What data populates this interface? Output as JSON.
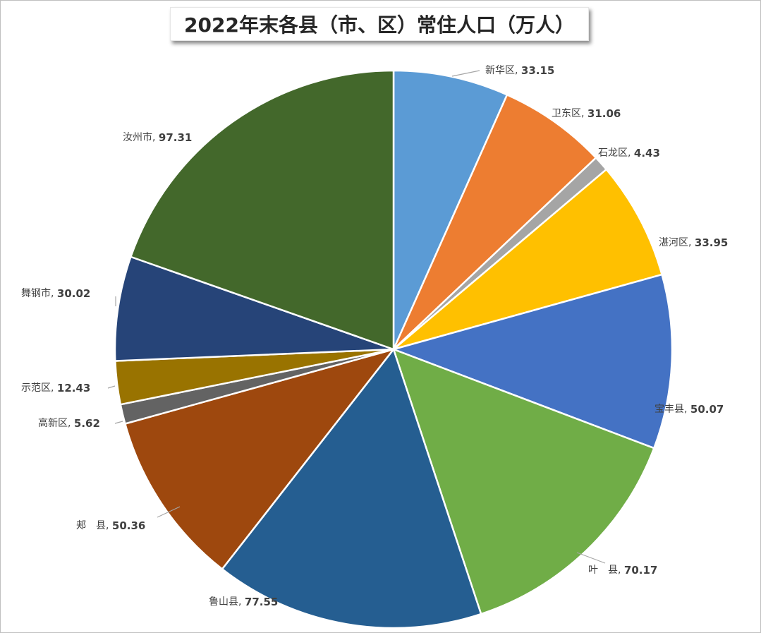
{
  "chart_data": {
    "type": "pie",
    "title": "2022年末各县（市、区）常住人口（万人）",
    "slices": [
      {
        "name": "新华区",
        "value": 33.15,
        "color": "#5b9bd5"
      },
      {
        "name": "卫东区",
        "value": 31.06,
        "color": "#ed7d31"
      },
      {
        "name": "石龙区",
        "value": 4.43,
        "color": "#a5a5a5"
      },
      {
        "name": "湛河区",
        "value": 33.95,
        "color": "#ffc000"
      },
      {
        "name": "宝丰县",
        "value": 50.07,
        "color": "#4472c4"
      },
      {
        "name": "叶　县",
        "value": 70.17,
        "color": "#70ad47"
      },
      {
        "name": "鲁山县",
        "value": 77.55,
        "color": "#255e91"
      },
      {
        "name": "郏　县",
        "value": 50.36,
        "color": "#9e480e"
      },
      {
        "name": "高新区",
        "value": 5.62,
        "color": "#636363"
      },
      {
        "name": "示范区",
        "value": 12.43,
        "color": "#997300"
      },
      {
        "name": "舞钢市",
        "value": 30.02,
        "color": "#264478"
      },
      {
        "name": "汝州市",
        "value": 97.31,
        "color": "#43682b"
      }
    ]
  }
}
